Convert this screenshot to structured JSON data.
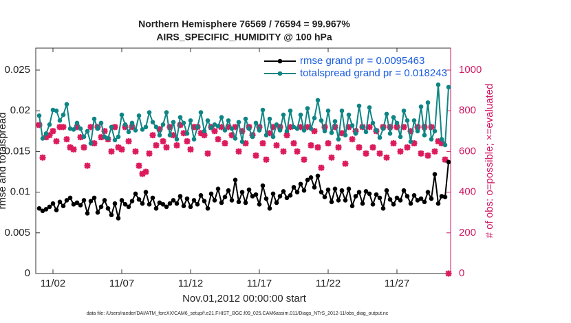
{
  "chart_data": {
    "type": "line",
    "title": "Northern Hemisphere 76569 / 76594 = 99.967%",
    "subtitle": "AIRS_SPECIFIC_HUMIDITY @ 100 hPa",
    "x_label": "Nov.01,2012 00:00:00 start",
    "y_label": "rmse and totalspread",
    "y2_label": "# of obs: o=possible; ×=evaluated",
    "footer": "data file: /Users/raeder/DAI/ATM_forcXX/CAM6_setup/f.e21.FHIST_BGC.f09_025.CAM6assim.011/Diags_NTrS_2012-11/obs_diag_output.nc",
    "legend": "upper right",
    "grid": false,
    "x": [
      0,
      0.25,
      0.5,
      0.75,
      1,
      1.25,
      1.5,
      1.75,
      2,
      2.25,
      2.5,
      2.75,
      3,
      3.25,
      3.5,
      3.75,
      4,
      4.25,
      4.5,
      4.75,
      5,
      5.25,
      5.5,
      5.75,
      6,
      6.25,
      6.5,
      6.75,
      7,
      7.25,
      7.5,
      7.75,
      8,
      8.25,
      8.5,
      8.75,
      9,
      9.25,
      9.5,
      9.75,
      10,
      10.25,
      10.5,
      10.75,
      11,
      11.25,
      11.5,
      11.75,
      12,
      12.25,
      12.5,
      12.75,
      13,
      13.25,
      13.5,
      13.75,
      14,
      14.25,
      14.5,
      14.75,
      15,
      15.25,
      15.5,
      15.75,
      16,
      16.25,
      16.5,
      16.75,
      17,
      17.25,
      17.5,
      17.75,
      18,
      18.25,
      18.5,
      18.75,
      19,
      19.25,
      19.5,
      19.75,
      20,
      20.25,
      20.5,
      20.75,
      21,
      21.25,
      21.5,
      21.75,
      22,
      22.25,
      22.5,
      22.75,
      23,
      23.25,
      23.5,
      23.75,
      24,
      24.25,
      24.5,
      24.75,
      25,
      25.25,
      25.5,
      25.75,
      26,
      26.25,
      26.5,
      26.75,
      27,
      27.25,
      27.5,
      27.75,
      28,
      28.25,
      28.5,
      28.75,
      29,
      29.25,
      29.5,
      29.75
    ],
    "xlim": [
      -0.25,
      29.9
    ],
    "xticks": [
      {
        "value": 1,
        "label": "11/02"
      },
      {
        "value": 6,
        "label": "11/07"
      },
      {
        "value": 11,
        "label": "11/12"
      },
      {
        "value": 16,
        "label": "11/17"
      },
      {
        "value": 21,
        "label": "11/22"
      },
      {
        "value": 26,
        "label": "11/27"
      }
    ],
    "ylim": [
      0,
      0.0277
    ],
    "yticks": [
      0,
      0.005,
      0.01,
      0.015,
      0.02,
      0.025
    ],
    "y2lim": [
      0,
      1108
    ],
    "y2ticks": [
      0,
      200,
      400,
      600,
      800,
      1000
    ],
    "series": [
      {
        "name": "rmse grand pr = 0.0095463",
        "color": "#000000",
        "values": [
          0.008,
          0.0077,
          0.0079,
          0.0082,
          0.0086,
          0.0078,
          0.0088,
          0.0083,
          0.009,
          0.0093,
          0.0085,
          0.0087,
          0.0084,
          0.009,
          0.0074,
          0.0089,
          0.0093,
          0.0075,
          0.0082,
          0.009,
          0.008,
          0.0072,
          0.0086,
          0.0068,
          0.009,
          0.0085,
          0.0082,
          0.0089,
          0.0098,
          0.0091,
          0.0086,
          0.01,
          0.0085,
          0.0093,
          0.008,
          0.0087,
          0.0085,
          0.0082,
          0.0086,
          0.009,
          0.0086,
          0.0095,
          0.0083,
          0.0092,
          0.0082,
          0.009,
          0.0085,
          0.0096,
          0.0089,
          0.008,
          0.0098,
          0.009,
          0.0104,
          0.0087,
          0.0094,
          0.0102,
          0.009,
          0.0115,
          0.0088,
          0.01,
          0.0087,
          0.0103,
          0.0095,
          0.0097,
          0.0085,
          0.0108,
          0.0092,
          0.008,
          0.0098,
          0.0087,
          0.0095,
          0.0101,
          0.0093,
          0.0096,
          0.0106,
          0.01,
          0.011,
          0.0102,
          0.0115,
          0.0118,
          0.0106,
          0.012,
          0.01,
          0.0094,
          0.0103,
          0.0088,
          0.0104,
          0.009,
          0.0102,
          0.009,
          0.0104,
          0.0083,
          0.0095,
          0.01,
          0.0086,
          0.0101,
          0.0098,
          0.0085,
          0.0097,
          0.0093,
          0.008,
          0.0102,
          0.0091,
          0.0085,
          0.0093,
          0.009,
          0.0102,
          0.0095,
          0.0086,
          0.0096,
          0.009,
          0.0092,
          0.0088,
          0.01,
          0.0092,
          0.0122,
          0.0086,
          0.0095,
          0.0094,
          0.0137
        ]
      },
      {
        "name": "totalspread grand pr = 0.018243",
        "color": "#0e8584",
        "values": [
          0.0194,
          0.0166,
          0.0172,
          0.0183,
          0.0201,
          0.02,
          0.0188,
          0.0195,
          0.0208,
          0.0178,
          0.0177,
          0.0185,
          0.0178,
          0.0168,
          0.0175,
          0.016,
          0.019,
          0.0178,
          0.0185,
          0.0168,
          0.0166,
          0.018,
          0.0164,
          0.0168,
          0.0195,
          0.0183,
          0.0174,
          0.0185,
          0.0176,
          0.0194,
          0.0177,
          0.018,
          0.0198,
          0.0186,
          0.018,
          0.017,
          0.0183,
          0.0198,
          0.017,
          0.0186,
          0.0165,
          0.0192,
          0.0185,
          0.0172,
          0.0188,
          0.0165,
          0.018,
          0.0198,
          0.0175,
          0.0188,
          0.0179,
          0.0183,
          0.0181,
          0.0192,
          0.0176,
          0.0188,
          0.0178,
          0.0166,
          0.0186,
          0.0162,
          0.019,
          0.0178,
          0.0168,
          0.0185,
          0.0176,
          0.0201,
          0.017,
          0.019,
          0.0168,
          0.0183,
          0.0176,
          0.0195,
          0.0175,
          0.02,
          0.018,
          0.0178,
          0.0195,
          0.0176,
          0.0203,
          0.0178,
          0.0191,
          0.0213,
          0.0188,
          0.0175,
          0.02,
          0.0173,
          0.0187,
          0.0165,
          0.02,
          0.017,
          0.0195,
          0.0182,
          0.0172,
          0.0206,
          0.018,
          0.0174,
          0.0204,
          0.0185,
          0.0176,
          0.0167,
          0.0178,
          0.0196,
          0.0172,
          0.0192,
          0.0185,
          0.0168,
          0.02,
          0.0188,
          0.0162,
          0.0188,
          0.0175,
          0.0205,
          0.017,
          0.021,
          0.0165,
          0.0175,
          0.0232,
          0.0165,
          0.0158,
          0.0229
        ]
      }
    ],
    "obs": {
      "color": "#dc1a5c",
      "axis": "y2",
      "values": [
        730,
        570,
        670,
        680,
        700,
        650,
        720,
        720,
        660,
        620,
        610,
        720,
        670,
        620,
        530,
        720,
        640,
        720,
        670,
        700,
        660,
        600,
        720,
        620,
        610,
        720,
        650,
        720,
        600,
        530,
        490,
        500,
        590,
        680,
        630,
        710,
        650,
        620,
        720,
        680,
        630,
        730,
        690,
        650,
        610,
        720,
        720,
        690,
        680,
        590,
        720,
        700,
        660,
        720,
        640,
        720,
        680,
        720,
        600,
        700,
        640,
        720,
        680,
        580,
        720,
        640,
        560,
        690,
        720,
        630,
        720,
        600,
        680,
        720,
        640,
        600,
        720,
        560,
        720,
        630,
        700,
        620,
        520,
        720,
        640,
        570,
        720,
        620,
        690,
        540,
        720,
        660,
        700,
        620,
        720,
        590,
        720,
        620,
        700,
        590,
        720,
        570,
        720,
        640,
        720,
        600,
        720,
        620,
        700,
        640,
        720,
        590,
        720,
        580,
        720,
        600,
        650,
        640,
        560,
        0
      ]
    }
  }
}
